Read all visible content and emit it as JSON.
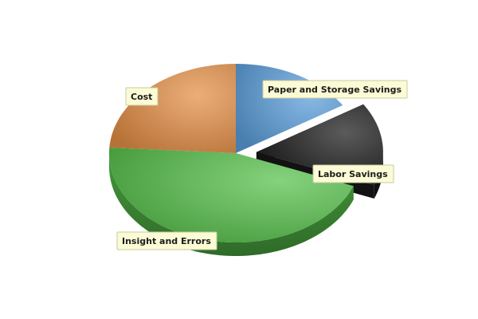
{
  "chart_data": {
    "type": "pie",
    "style": "3d-exploded",
    "title": "",
    "legend": "none",
    "labels_shown": "callout-boxes",
    "series": [
      {
        "slices": [
          {
            "label": "Paper and Storage Savings",
            "value": 16,
            "color": "#5b9fdc",
            "exploded": false
          },
          {
            "label": "Labor Savings",
            "value": 15,
            "color": "#1b1b1b",
            "exploded": true
          },
          {
            "label": "Insight and Errors",
            "value": 45,
            "color": "#56c04a",
            "exploded": false
          },
          {
            "label": "Cost",
            "value": 24,
            "color": "#e58e45",
            "exploded": false
          }
        ]
      }
    ]
  }
}
